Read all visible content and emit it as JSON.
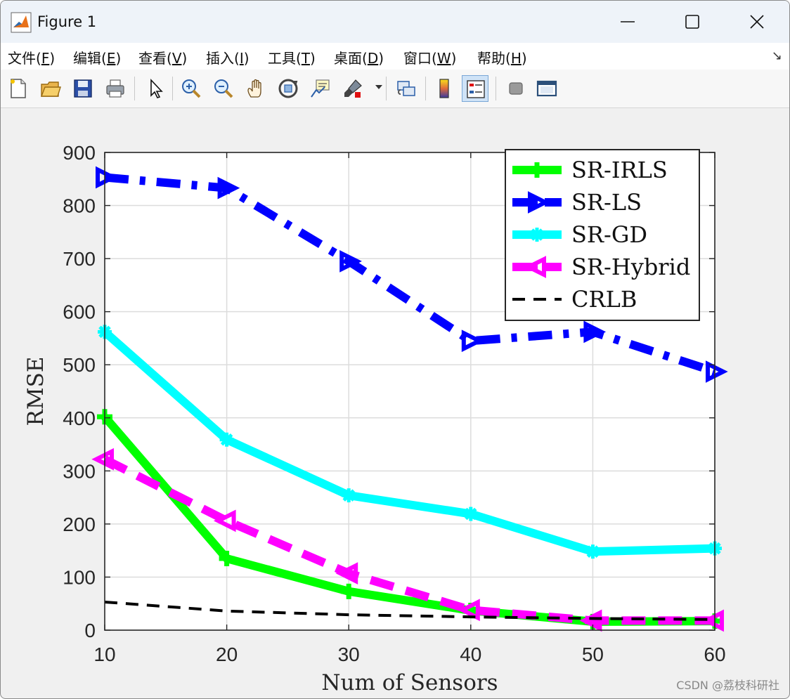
{
  "window": {
    "title": "Figure 1"
  },
  "menu": {
    "items": [
      {
        "label": "文件(",
        "mnemonic": "F",
        "suffix": ")"
      },
      {
        "label": "编辑(",
        "mnemonic": "E",
        "suffix": ")"
      },
      {
        "label": "查看(",
        "mnemonic": "V",
        "suffix": ")"
      },
      {
        "label": "插入(",
        "mnemonic": "I",
        "suffix": ")"
      },
      {
        "label": "工具(",
        "mnemonic": "T",
        "suffix": ")"
      },
      {
        "label": "桌面(",
        "mnemonic": "D",
        "suffix": ")"
      },
      {
        "label": "窗口(",
        "mnemonic": "W",
        "suffix": ")"
      },
      {
        "label": "帮助(",
        "mnemonic": "H",
        "suffix": ")"
      }
    ],
    "arrow": "↘"
  },
  "toolbar": {
    "icons": [
      "new-figure-icon",
      "open-file-icon",
      "save-icon",
      "print-icon",
      "select-arrow-icon",
      "zoom-in-icon",
      "zoom-out-icon",
      "pan-hand-icon",
      "rotate-3d-icon",
      "data-cursor-icon",
      "brush-icon",
      "link-plot-icon",
      "colorbar-icon",
      "legend-icon",
      "hide-tools-icon",
      "dock-icon"
    ]
  },
  "colors": {
    "SR-IRLS": "#00ff00",
    "SR-LS": "#0000ff",
    "SR-GD": "#00ffff",
    "SR-Hybrid": "#ff00ff",
    "CRLB": "#000000"
  },
  "chart_data": {
    "type": "line",
    "xlabel": "Num of Sensors",
    "ylabel": "RMSE",
    "xlim": [
      10,
      60
    ],
    "ylim": [
      0,
      900
    ],
    "xticks": [
      10,
      20,
      30,
      40,
      50,
      60
    ],
    "yticks": [
      0,
      100,
      200,
      300,
      400,
      500,
      600,
      700,
      800,
      900
    ],
    "grid": true,
    "legend_position": "top-right",
    "x": [
      10,
      20,
      30,
      40,
      50,
      60
    ],
    "series": [
      {
        "name": "SR-IRLS",
        "values": [
          402,
          135,
          73,
          37,
          16,
          17
        ],
        "color": "#00ff00",
        "line": "solid",
        "marker": "plus"
      },
      {
        "name": "SR-LS",
        "values": [
          853,
          833,
          695,
          545,
          562,
          487
        ],
        "color": "#0000ff",
        "line": "dashdot",
        "marker": "triangle-right"
      },
      {
        "name": "SR-GD",
        "values": [
          562,
          359,
          254,
          219,
          148,
          154
        ],
        "color": "#00ffff",
        "line": "solid",
        "marker": "star"
      },
      {
        "name": "SR-Hybrid",
        "values": [
          322,
          206,
          107,
          38,
          18,
          18
        ],
        "color": "#ff00ff",
        "line": "dashed",
        "marker": "triangle-left"
      },
      {
        "name": "CRLB",
        "values": [
          53,
          36,
          29,
          25,
          22,
          20
        ],
        "color": "#000000",
        "line": "dashed",
        "marker": "none"
      }
    ]
  },
  "watermark": "CSDN @荔枝科研社"
}
